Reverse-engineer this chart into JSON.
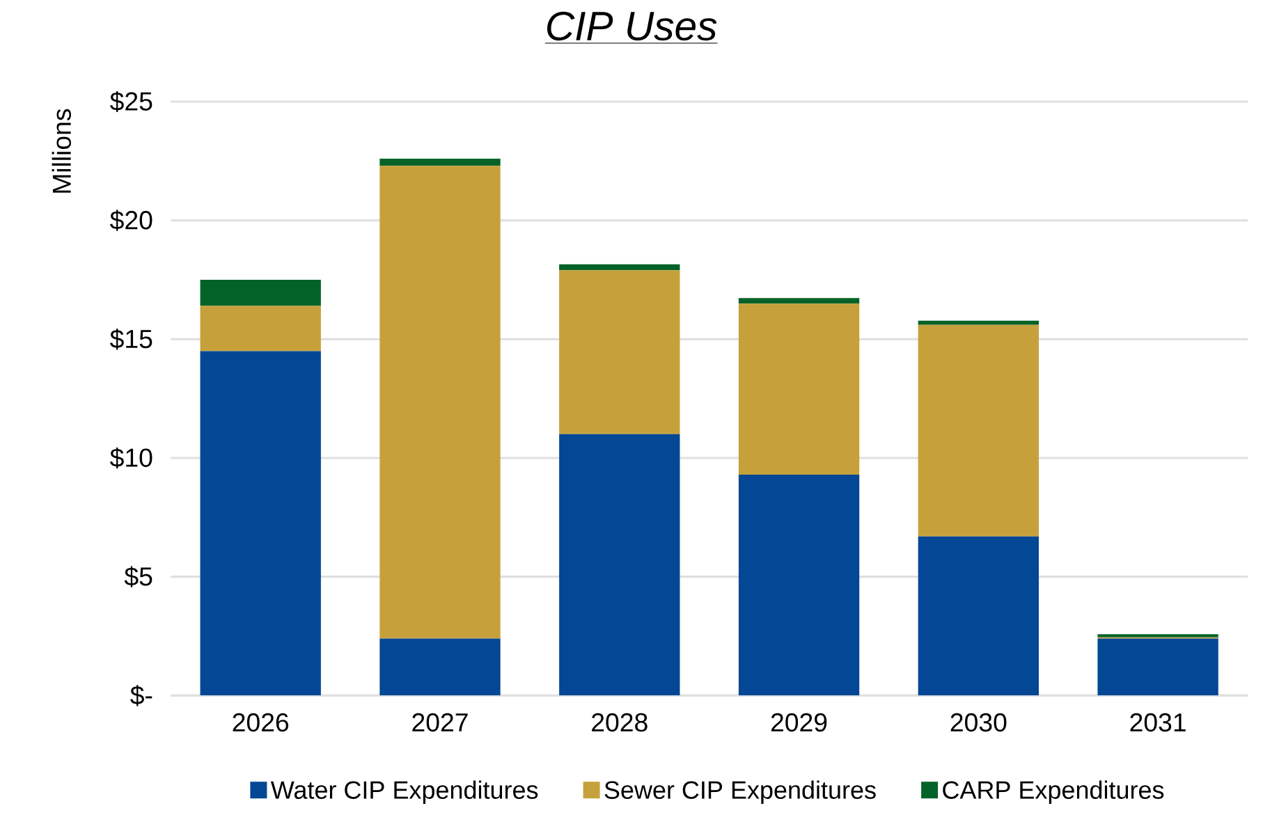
{
  "chart_data": {
    "type": "bar",
    "title": "CIP Uses",
    "ylabel": "Millions",
    "stacked": true,
    "categories": [
      "2026",
      "2027",
      "2028",
      "2029",
      "2030",
      "2031"
    ],
    "series": [
      {
        "name": "Water CIP Expenditures",
        "color": "#044795",
        "values": [
          14.5,
          2.4,
          11.0,
          9.3,
          6.7,
          2.4
        ]
      },
      {
        "name": "Sewer CIP Expenditures",
        "color": "#c6a13b",
        "values": [
          1.9,
          19.9,
          6.9,
          7.2,
          8.9,
          0.05
        ]
      },
      {
        "name": "CARP Expenditures",
        "color": "#036228",
        "values": [
          1.1,
          0.3,
          0.25,
          0.23,
          0.18,
          0.13
        ]
      }
    ],
    "ylim": [
      0,
      25
    ],
    "yticks": [
      {
        "value": 0,
        "label": "$-"
      },
      {
        "value": 5,
        "label": "$5"
      },
      {
        "value": 10,
        "label": "$10"
      },
      {
        "value": 15,
        "label": "$15"
      },
      {
        "value": 20,
        "label": "$20"
      },
      {
        "value": 25,
        "label": "$25"
      }
    ],
    "grid": "y",
    "legend": "bottom"
  }
}
